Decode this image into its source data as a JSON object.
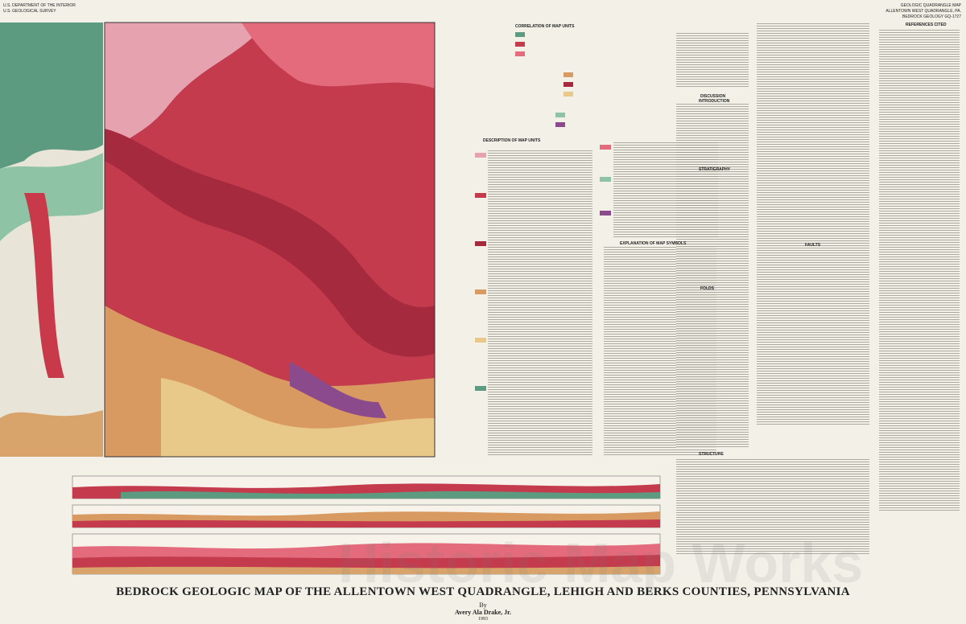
{
  "header": {
    "agency": "U.S. DEPARTMENT OF THE INTERIOR",
    "survey": "U.S. GEOLOGICAL SURVEY",
    "series": "GEOLOGIC QUADRANGLE MAP",
    "quadrangle": "ALLENTOWN WEST QUADRANGLE, PA.",
    "map_id": "BEDROCK GEOLOGY GQ-1727"
  },
  "legend": {
    "correlation": "CORRELATION OF MAP UNITS",
    "description": "DESCRIPTION OF MAP UNITS",
    "symbols": "EXPLANATION OF MAP SYMBOLS"
  },
  "discussion": {
    "heading": "DISCUSSION",
    "introduction": "INTRODUCTION",
    "stratigraphy": "STRATIGRAPHY",
    "structure": "STRUCTURE",
    "folds": "FOLDS",
    "faults": "FAULTS"
  },
  "references": "REFERENCES CITED",
  "title_block": {
    "title": "BEDROCK GEOLOGIC MAP OF THE ALLENTOWN WEST QUADRANGLE, LEHIGH AND BERKS COUNTIES, PENNSYLVANIA",
    "by": "By",
    "author": "Avery Ala Drake, Jr.",
    "year": "1993"
  },
  "watermark": "Historic Map Works"
}
